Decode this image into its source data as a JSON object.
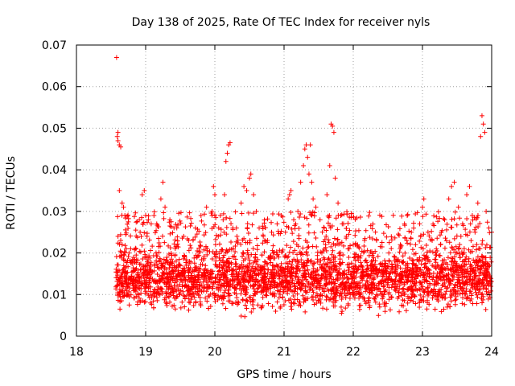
{
  "chart_data": {
    "type": "scatter",
    "title": "Day 138 of 2025, Rate Of TEC Index for receiver nyls",
    "xlabel": "GPS time / hours",
    "ylabel": "ROTI / TECUs",
    "xlim": [
      18,
      24
    ],
    "ylim": [
      0,
      0.07
    ],
    "x_ticks": [
      "18",
      "19",
      "20",
      "21",
      "22",
      "23",
      "24"
    ],
    "y_ticks": [
      "0",
      "0.01",
      "0.02",
      "0.03",
      "0.04",
      "0.05",
      "0.06",
      "0.07"
    ],
    "grid": true,
    "marker": "+",
    "color": "#ff0000",
    "series": [
      {
        "name": "ROTI",
        "points": [
          [
            18.58,
            0.067
          ],
          [
            18.6,
            0.049
          ],
          [
            18.59,
            0.048
          ],
          [
            18.6,
            0.047
          ],
          [
            18.62,
            0.046
          ],
          [
            18.64,
            0.0455
          ],
          [
            18.62,
            0.035
          ],
          [
            18.66,
            0.032
          ],
          [
            18.68,
            0.031
          ],
          [
            18.7,
            0.029
          ],
          [
            18.6,
            0.024
          ],
          [
            18.64,
            0.023
          ],
          [
            18.66,
            0.022
          ],
          [
            18.72,
            0.021
          ],
          [
            18.76,
            0.02
          ],
          [
            18.8,
            0.018
          ],
          [
            18.86,
            0.021
          ],
          [
            18.92,
            0.025
          ],
          [
            18.96,
            0.027
          ],
          [
            19.0,
            0.029
          ],
          [
            19.04,
            0.028
          ],
          [
            19.08,
            0.027
          ],
          [
            18.95,
            0.034
          ],
          [
            18.98,
            0.035
          ],
          [
            19.02,
            0.024
          ],
          [
            19.12,
            0.029
          ],
          [
            19.16,
            0.027
          ],
          [
            19.22,
            0.033
          ],
          [
            19.25,
            0.037
          ],
          [
            19.28,
            0.031
          ],
          [
            19.35,
            0.028
          ],
          [
            19.45,
            0.026
          ],
          [
            19.55,
            0.024
          ],
          [
            19.62,
            0.023
          ],
          [
            19.72,
            0.026
          ],
          [
            19.8,
            0.029
          ],
          [
            19.88,
            0.031
          ],
          [
            19.96,
            0.03
          ],
          [
            19.98,
            0.036
          ],
          [
            20.0,
            0.034
          ],
          [
            20.08,
            0.029
          ],
          [
            20.12,
            0.028
          ],
          [
            20.16,
            0.042
          ],
          [
            20.18,
            0.044
          ],
          [
            20.2,
            0.046
          ],
          [
            20.22,
            0.0465
          ],
          [
            20.14,
            0.034
          ],
          [
            20.26,
            0.026
          ],
          [
            20.32,
            0.024
          ],
          [
            20.38,
            0.032
          ],
          [
            20.42,
            0.036
          ],
          [
            20.46,
            0.035
          ],
          [
            20.5,
            0.038
          ],
          [
            20.52,
            0.039
          ],
          [
            20.56,
            0.034
          ],
          [
            20.6,
            0.03
          ],
          [
            20.64,
            0.026
          ],
          [
            20.7,
            0.024
          ],
          [
            20.76,
            0.023
          ],
          [
            20.82,
            0.025
          ],
          [
            20.9,
            0.027
          ],
          [
            20.96,
            0.029
          ],
          [
            21.02,
            0.025
          ],
          [
            21.06,
            0.033
          ],
          [
            21.08,
            0.034
          ],
          [
            21.1,
            0.035
          ],
          [
            21.14,
            0.028
          ],
          [
            21.2,
            0.03
          ],
          [
            21.24,
            0.037
          ],
          [
            21.28,
            0.041
          ],
          [
            21.3,
            0.045
          ],
          [
            21.32,
            0.046
          ],
          [
            21.34,
            0.043
          ],
          [
            21.36,
            0.039
          ],
          [
            21.38,
            0.046
          ],
          [
            21.4,
            0.037
          ],
          [
            21.42,
            0.033
          ],
          [
            21.46,
            0.031
          ],
          [
            21.52,
            0.028
          ],
          [
            21.58,
            0.026
          ],
          [
            21.62,
            0.034
          ],
          [
            21.66,
            0.041
          ],
          [
            21.68,
            0.051
          ],
          [
            21.7,
            0.0505
          ],
          [
            21.72,
            0.049
          ],
          [
            21.74,
            0.038
          ],
          [
            21.78,
            0.032
          ],
          [
            21.82,
            0.029
          ],
          [
            21.86,
            0.027
          ],
          [
            21.9,
            0.024
          ],
          [
            21.94,
            0.021
          ],
          [
            22.0,
            0.022
          ],
          [
            22.06,
            0.019
          ],
          [
            22.12,
            0.017
          ],
          [
            22.2,
            0.016
          ],
          [
            22.3,
            0.015
          ],
          [
            22.38,
            0.016
          ],
          [
            22.45,
            0.017
          ],
          [
            22.52,
            0.018
          ],
          [
            22.6,
            0.019
          ],
          [
            22.68,
            0.022
          ],
          [
            22.74,
            0.027
          ],
          [
            22.78,
            0.029
          ],
          [
            22.84,
            0.025
          ],
          [
            22.9,
            0.022
          ],
          [
            22.96,
            0.027
          ],
          [
            23.0,
            0.031
          ],
          [
            23.02,
            0.033
          ],
          [
            23.08,
            0.025
          ],
          [
            23.14,
            0.023
          ],
          [
            23.2,
            0.021
          ],
          [
            23.26,
            0.022
          ],
          [
            23.32,
            0.028
          ],
          [
            23.38,
            0.033
          ],
          [
            23.42,
            0.036
          ],
          [
            23.46,
            0.037
          ],
          [
            23.52,
            0.031
          ],
          [
            23.58,
            0.027
          ],
          [
            23.64,
            0.034
          ],
          [
            23.68,
            0.036
          ],
          [
            23.72,
            0.029
          ],
          [
            23.76,
            0.025
          ],
          [
            23.8,
            0.032
          ],
          [
            23.84,
            0.048
          ],
          [
            23.86,
            0.053
          ],
          [
            23.88,
            0.051
          ],
          [
            23.9,
            0.049
          ],
          [
            23.92,
            0.03
          ],
          [
            23.96,
            0.026
          ],
          [
            24.0,
            0.025
          ]
        ],
        "dense_band": {
          "x_range": [
            18.57,
            24.0
          ],
          "typical_range": [
            0.006,
            0.02
          ],
          "median": 0.012,
          "min": 0.004,
          "approx_points": 3200
        }
      }
    ]
  }
}
